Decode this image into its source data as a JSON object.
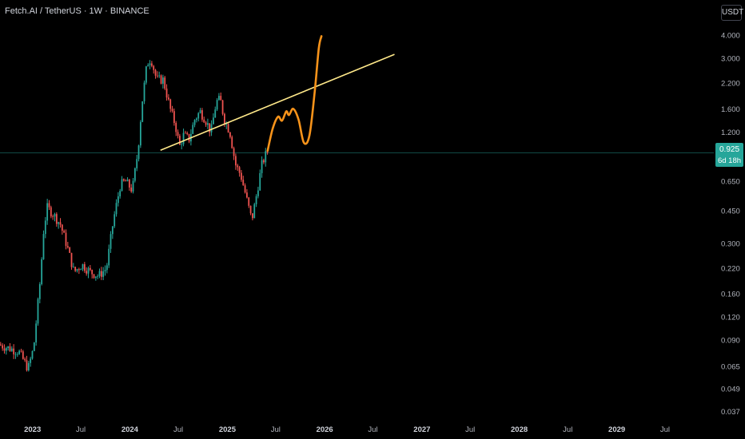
{
  "header": {
    "title": "Fetch.AI / TetherUS · 1W · BINANCE",
    "currency_label": "USDT"
  },
  "price_badge": {
    "price": "0.925",
    "countdown": "6d 18h"
  },
  "colors": {
    "up": "#26a69a",
    "down": "#ef5350",
    "trendline": "#ffe98a",
    "projection": "#f7931a",
    "price_line": "#26a69a",
    "background": "#000000"
  },
  "chart_data": {
    "type": "candlestick",
    "interval": "1W",
    "yscale": "log",
    "ylim": [
      0.034,
      4.6
    ],
    "xlim": [
      "2022-09-01",
      "2029-12-31"
    ],
    "y_ticks": [
      "4.000",
      "3.000",
      "2.200",
      "1.600",
      "1.200",
      "0.925",
      "0.650",
      "0.450",
      "0.300",
      "0.220",
      "0.160",
      "0.120",
      "0.090",
      "0.065",
      "0.049",
      "0.037"
    ],
    "x_ticks": [
      {
        "label": "2023",
        "date": "2023-01-01",
        "year": true
      },
      {
        "label": "Jul",
        "date": "2023-07-01",
        "year": false
      },
      {
        "label": "2024",
        "date": "2024-01-01",
        "year": true
      },
      {
        "label": "Jul",
        "date": "2024-07-01",
        "year": false
      },
      {
        "label": "2025",
        "date": "2025-01-01",
        "year": true
      },
      {
        "label": "Jul",
        "date": "2025-07-01",
        "year": false
      },
      {
        "label": "2026",
        "date": "2026-01-01",
        "year": true
      },
      {
        "label": "Jul",
        "date": "2026-07-01",
        "year": false
      },
      {
        "label": "2027",
        "date": "2027-01-01",
        "year": true
      },
      {
        "label": "Jul",
        "date": "2027-07-01",
        "year": false
      },
      {
        "label": "2028",
        "date": "2028-01-01",
        "year": true
      },
      {
        "label": "Jul",
        "date": "2028-07-01",
        "year": false
      },
      {
        "label": "2029",
        "date": "2029-01-01",
        "year": true
      },
      {
        "label": "Jul",
        "date": "2029-07-01",
        "year": false
      }
    ],
    "last_price": 0.925,
    "price_anchors": [
      [
        "2022-09-01",
        0.085
      ],
      [
        "2022-11-15",
        0.078
      ],
      [
        "2022-12-20",
        0.063
      ],
      [
        "2023-01-10",
        0.082
      ],
      [
        "2023-02-05",
        0.2
      ],
      [
        "2023-02-15",
        0.34
      ],
      [
        "2023-03-01",
        0.47
      ],
      [
        "2023-03-25",
        0.43
      ],
      [
        "2023-04-20",
        0.38
      ],
      [
        "2023-05-15",
        0.29
      ],
      [
        "2023-06-10",
        0.21
      ],
      [
        "2023-07-10",
        0.23
      ],
      [
        "2023-08-10",
        0.21
      ],
      [
        "2023-09-10",
        0.2
      ],
      [
        "2023-10-10",
        0.22
      ],
      [
        "2023-11-05",
        0.4
      ],
      [
        "2023-12-01",
        0.62
      ],
      [
        "2023-12-20",
        0.65
      ],
      [
        "2024-01-15",
        0.58
      ],
      [
        "2024-02-05",
        0.95
      ],
      [
        "2024-02-20",
        1.7
      ],
      [
        "2024-03-10",
        2.8
      ],
      [
        "2024-03-25",
        3.0
      ],
      [
        "2024-04-15",
        2.3
      ],
      [
        "2024-05-10",
        2.3
      ],
      [
        "2024-06-05",
        1.6
      ],
      [
        "2024-06-25",
        1.3
      ],
      [
        "2024-07-10",
        1.0
      ],
      [
        "2024-07-25",
        1.15
      ],
      [
        "2024-08-15",
        1.1
      ],
      [
        "2024-09-05",
        1.4
      ],
      [
        "2024-09-25",
        1.55
      ],
      [
        "2024-10-15",
        1.4
      ],
      [
        "2024-11-05",
        1.2
      ],
      [
        "2024-11-25",
        1.75
      ],
      [
        "2024-12-10",
        1.8
      ],
      [
        "2024-12-25",
        1.4
      ],
      [
        "2025-01-15",
        1.2
      ],
      [
        "2025-02-05",
        0.8
      ],
      [
        "2025-02-25",
        0.7
      ],
      [
        "2025-03-15",
        0.55
      ],
      [
        "2025-04-07",
        0.4
      ],
      [
        "2025-04-20",
        0.5
      ],
      [
        "2025-05-15",
        0.8
      ],
      [
        "2025-06-01",
        0.925
      ]
    ],
    "trendline": {
      "start": [
        "2024-04-25",
        0.955
      ],
      "end": [
        "2026-09-20",
        3.15
      ]
    },
    "projection": [
      [
        "2025-06-01",
        0.95
      ],
      [
        "2025-06-20",
        1.25
      ],
      [
        "2025-07-10",
        1.45
      ],
      [
        "2025-07-25",
        1.38
      ],
      [
        "2025-08-10",
        1.55
      ],
      [
        "2025-08-20",
        1.48
      ],
      [
        "2025-09-05",
        1.6
      ],
      [
        "2025-09-25",
        1.4
      ],
      [
        "2025-10-15",
        1.05
      ],
      [
        "2025-11-05",
        1.15
      ],
      [
        "2025-11-25",
        2.0
      ],
      [
        "2025-12-10",
        3.4
      ],
      [
        "2025-12-20",
        3.95
      ]
    ]
  }
}
